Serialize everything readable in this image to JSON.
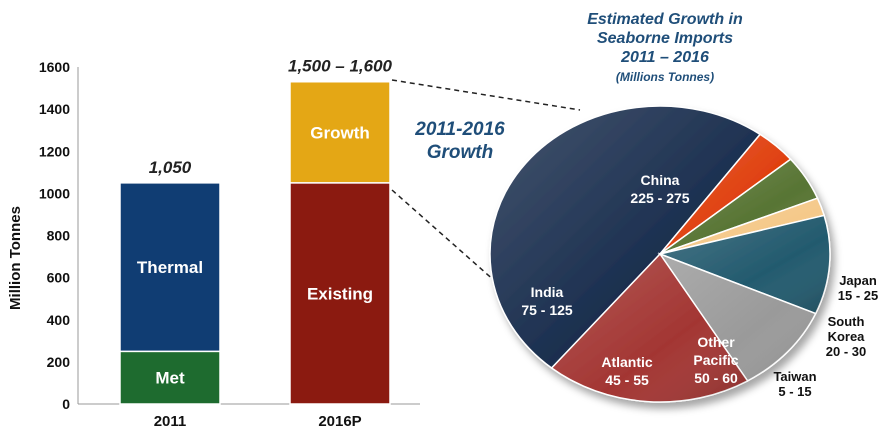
{
  "chart_data": [
    {
      "type": "bar",
      "stacked": true,
      "categories": [
        "2011",
        "2016P"
      ],
      "ylabel": "Million Tonnes",
      "ylim": [
        0,
        1600
      ],
      "yticks": [
        "0",
        "200",
        "400",
        "600",
        "800",
        "1000",
        "1200",
        "1400",
        "1600"
      ],
      "totals": [
        "1,050",
        "1,500 – 1,600"
      ],
      "series": [
        {
          "name": "Met",
          "values": [
            250,
            0
          ],
          "color": "#1e6b2f"
        },
        {
          "name": "Thermal",
          "values": [
            800,
            0
          ],
          "color": "#103d73"
        },
        {
          "name": "Existing",
          "values": [
            0,
            1050
          ],
          "color": "#8b1a10"
        },
        {
          "name": "Growth",
          "values": [
            0,
            480
          ],
          "color": "#e4a715"
        }
      ],
      "annotation": [
        "2011-2016",
        "Growth"
      ]
    },
    {
      "type": "pie",
      "title": [
        "Estimated Growth  in",
        "Seaborne Imports",
        "2011 – 2016"
      ],
      "subtitle": "(Millions Tonnes)",
      "slices": [
        {
          "name": "China",
          "range": "225 - 275",
          "value": 250,
          "color": "#1b2f4f"
        },
        {
          "name": "Japan",
          "range": "15 - 25",
          "value": 20,
          "color": "#e0400f"
        },
        {
          "name": "South Korea",
          "range": "20 - 30",
          "value": 25,
          "color": "#587534"
        },
        {
          "name": "Taiwan",
          "range": "5 - 15",
          "value": 10,
          "color": "#f5c98a"
        },
        {
          "name": "Other Pacific",
          "range": "50 - 60",
          "value": 55,
          "color": "#235a6e"
        },
        {
          "name": "Atlantic",
          "range": "45 - 55",
          "value": 50,
          "color": "#9a9a9a"
        },
        {
          "name": "India",
          "range": "75 - 125",
          "value": 100,
          "color": "#a33633"
        }
      ]
    }
  ]
}
